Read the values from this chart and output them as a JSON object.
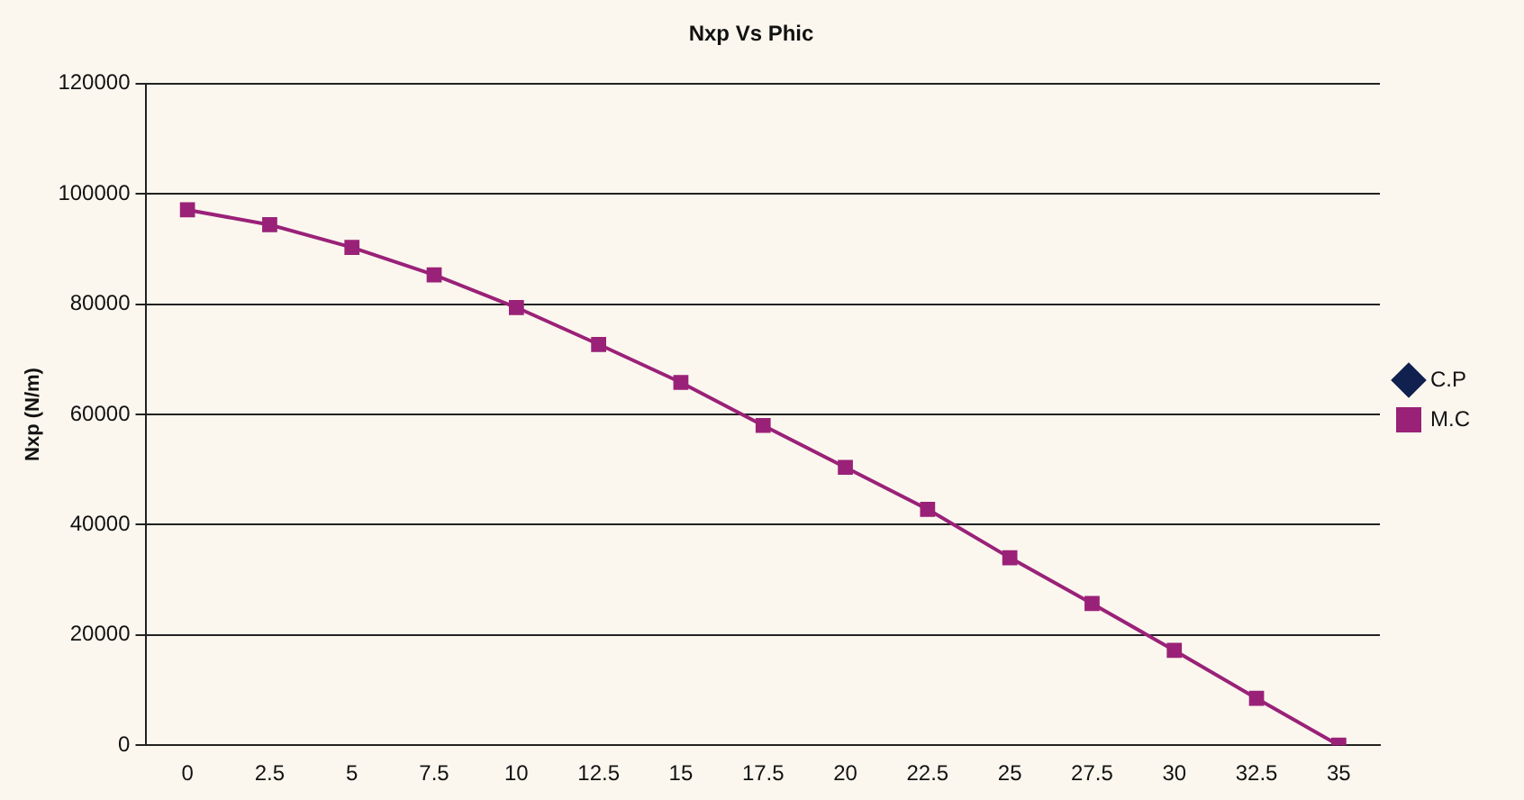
{
  "chart_data": {
    "type": "line",
    "title": "Nxp Vs Phic",
    "ylabel": "Nxp (N/m)",
    "categories": [
      "0",
      "2.5",
      "5",
      "7.5",
      "10",
      "12.5",
      "15",
      "17.5",
      "20",
      "22.5",
      "25",
      "27.5",
      "30",
      "32.5",
      "35"
    ],
    "series": [
      {
        "name": "C.P",
        "color": "#10204f",
        "marker": "diamond",
        "values": [
          null,
          null,
          null,
          null,
          null,
          null,
          null,
          null,
          null,
          null,
          null,
          null,
          null,
          null,
          null
        ]
      },
      {
        "name": "M.C",
        "color": "#9a2178",
        "marker": "square",
        "values": [
          97100,
          94400,
          90300,
          85300,
          79400,
          72700,
          65800,
          58000,
          50400,
          42800,
          34000,
          25700,
          17200,
          8500,
          0
        ]
      }
    ],
    "ylim": [
      0,
      120000
    ],
    "yticks": [
      0,
      20000,
      40000,
      60000,
      80000,
      100000,
      120000
    ],
    "grid": "y",
    "legend": "right",
    "line_style": "solid"
  }
}
